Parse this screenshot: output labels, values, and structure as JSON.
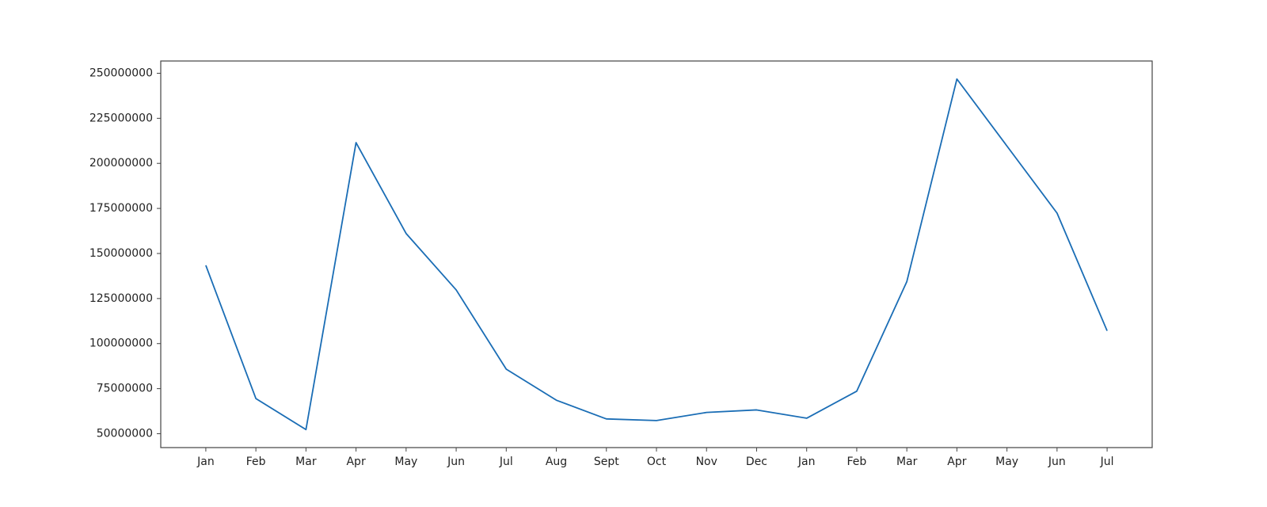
{
  "chart_data": {
    "type": "line",
    "categories": [
      "Jan",
      "Feb",
      "Mar",
      "Apr",
      "May",
      "Jun",
      "Jul",
      "Aug",
      "Sept",
      "Oct",
      "Nov",
      "Dec",
      "Jan",
      "Feb",
      "Mar",
      "Apr",
      "May",
      "Jun",
      "Jul"
    ],
    "series": [
      {
        "color": "#1a6db5",
        "values": [
          143400000,
          69500000,
          52300000,
          211500000,
          161100000,
          129800000,
          85800000,
          68600000,
          58200000,
          57300000,
          61800000,
          63200000,
          58600000,
          73600000,
          134400000,
          246800000,
          209600000,
          172400000,
          107100000
        ]
      }
    ],
    "ylim": [
      42300000,
      256800000
    ],
    "yticks": [
      50000000,
      75000000,
      100000000,
      125000000,
      150000000,
      175000000,
      200000000,
      225000000,
      250000000
    ],
    "grid": false
  }
}
